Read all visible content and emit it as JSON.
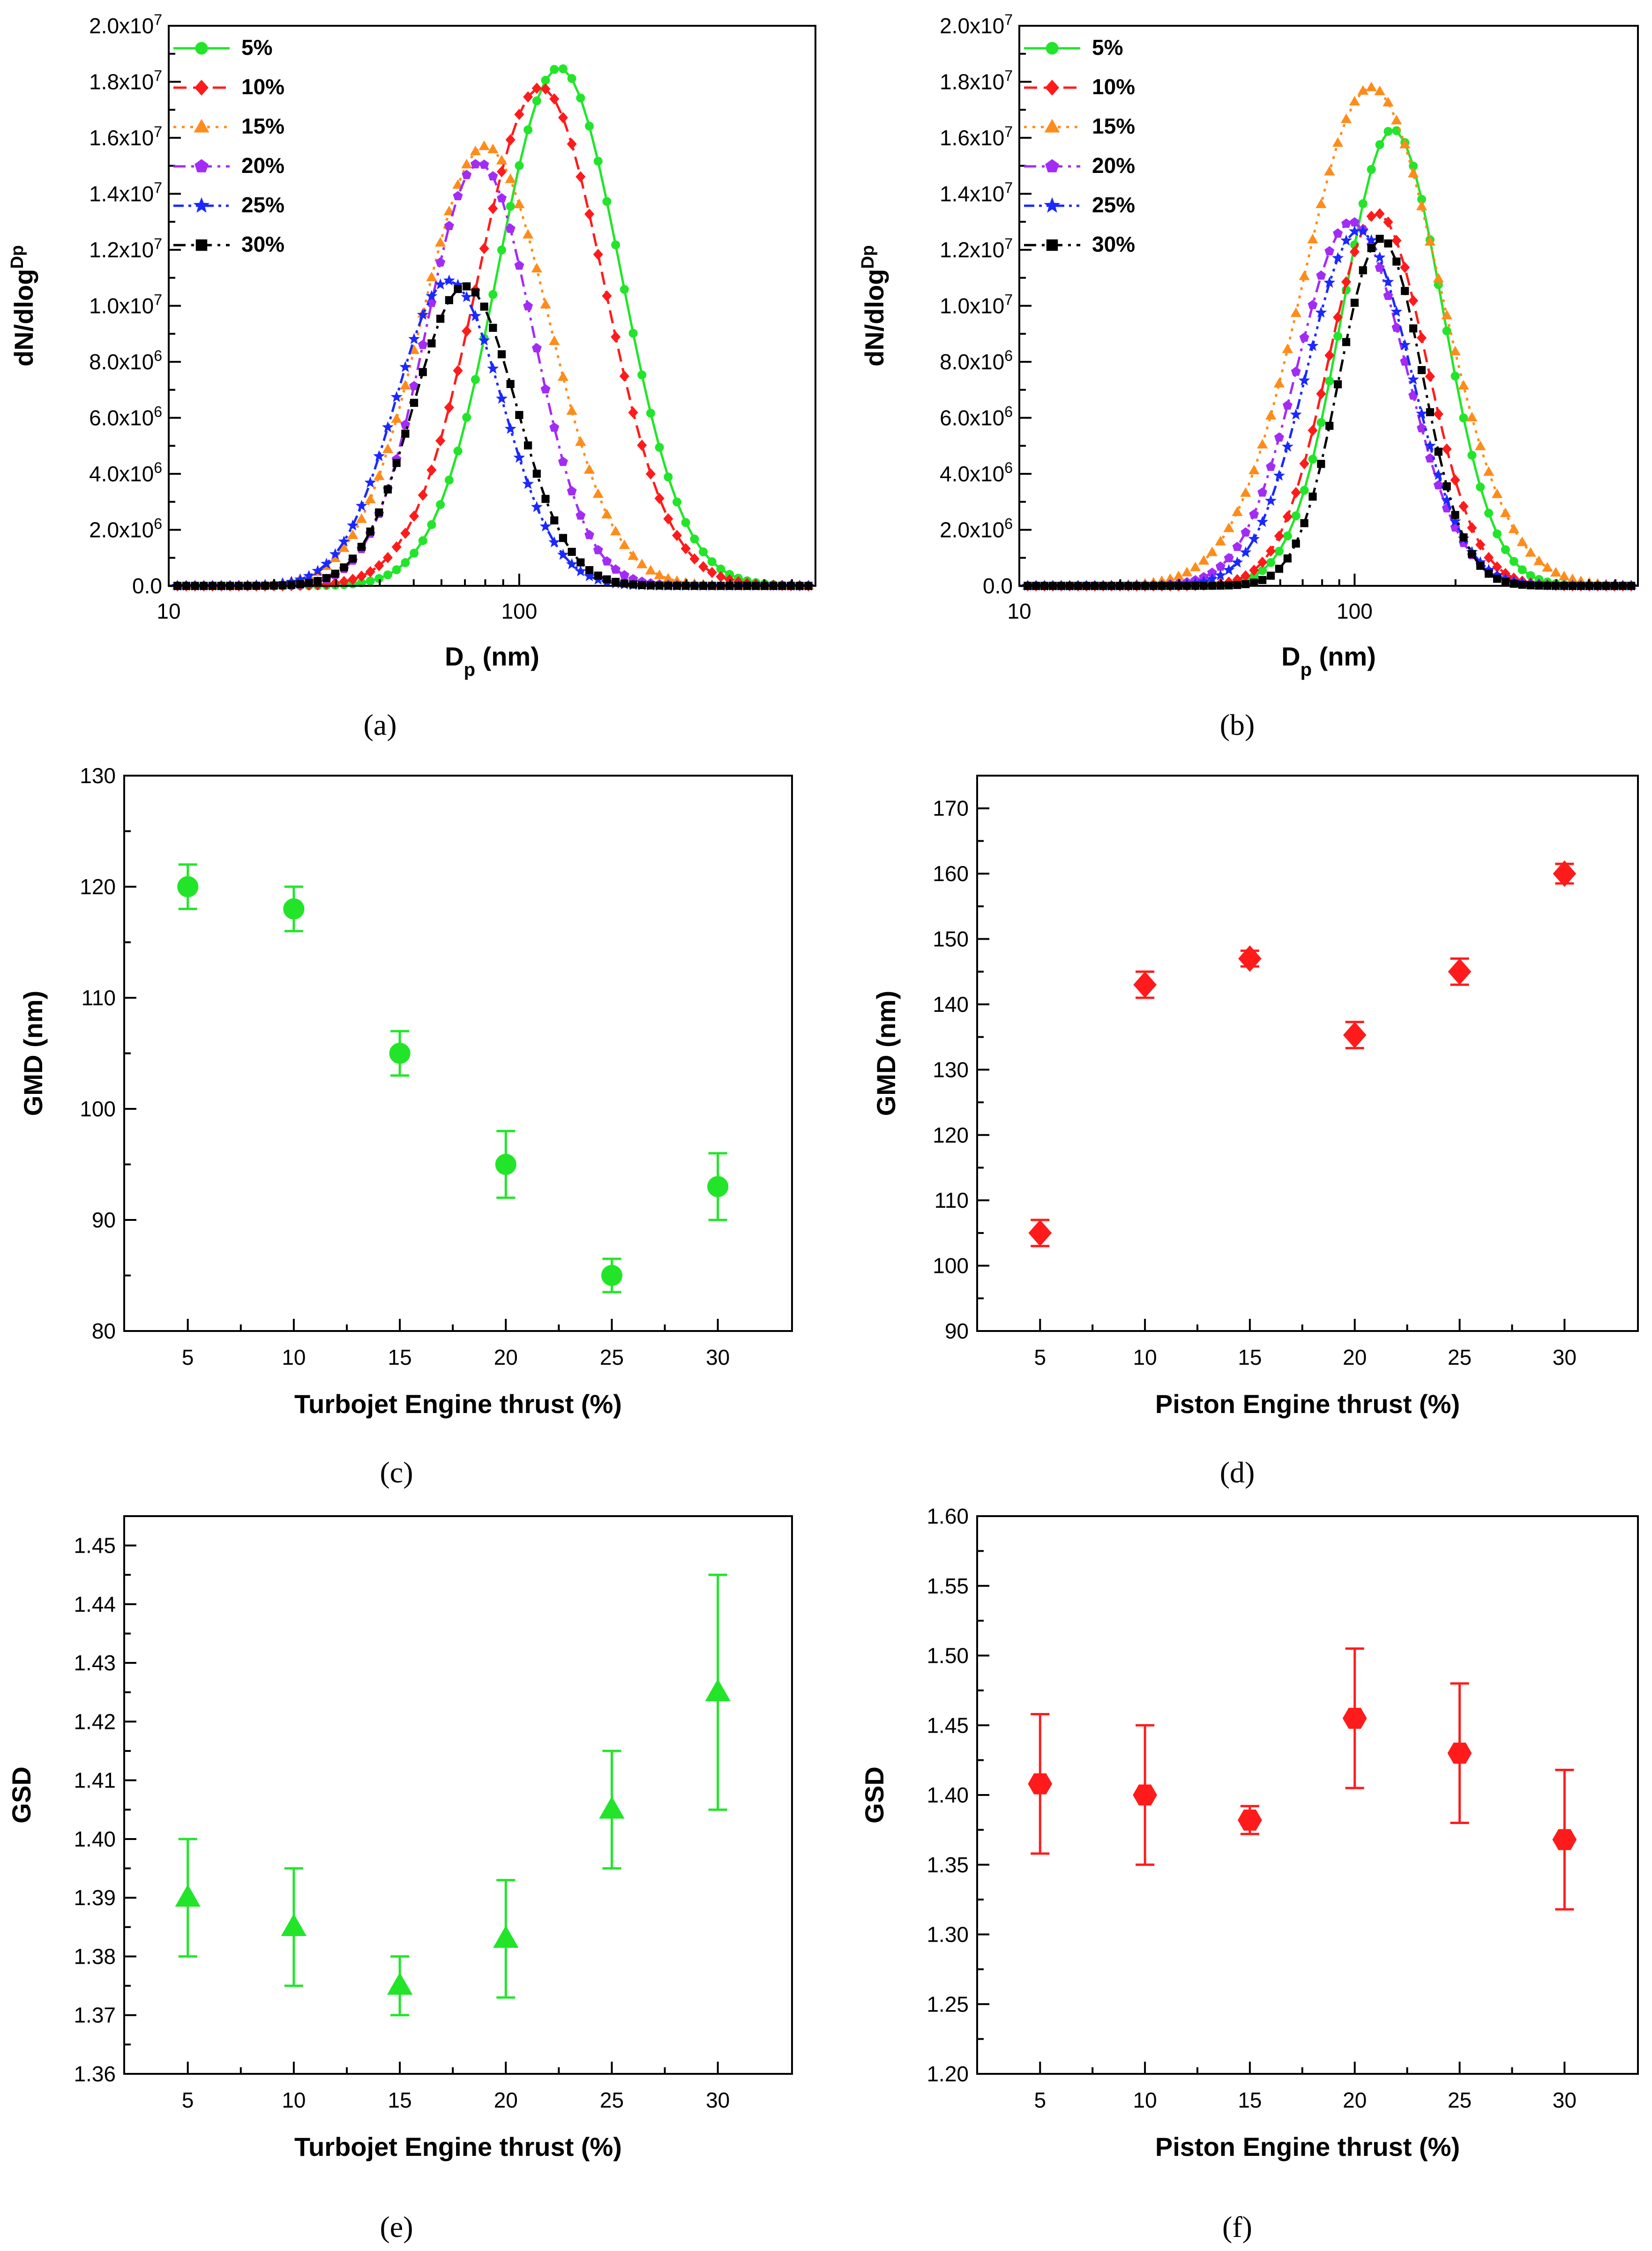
{
  "figure": {
    "colors": {
      "green": "#22e52a",
      "red": "#ff1b1b",
      "orange": "#ff8c1a",
      "purple": "#a32cf5",
      "blue": "#1b28ff",
      "black": "#000000"
    }
  },
  "chart_data": [
    {
      "id": "a",
      "panel_label": "(a)",
      "type": "line",
      "xlabel_main": "D",
      "xlabel_sub": "p",
      "xlabel_tail": " (nm)",
      "ylabel": "dN/dlog D p",
      "xscale": "log",
      "xlim": [
        10,
        700
      ],
      "ylim": [
        0,
        20000000
      ],
      "xticks": [
        {
          "v": 10,
          "label": "10"
        },
        {
          "v": 100,
          "label": "100"
        }
      ],
      "yticks": [
        {
          "v": 0,
          "label": "0.0"
        },
        {
          "v": 2000000,
          "label": "2.0x10^6"
        },
        {
          "v": 4000000,
          "label": "4.0x10^6"
        },
        {
          "v": 6000000,
          "label": "6.0x10^6"
        },
        {
          "v": 8000000,
          "label": "8.0x10^6"
        },
        {
          "v": 10000000,
          "label": "1.0x10^7"
        },
        {
          "v": 12000000,
          "label": "1.2x10^7"
        },
        {
          "v": 14000000,
          "label": "1.4x10^7"
        },
        {
          "v": 16000000,
          "label": "1.6x10^7"
        },
        {
          "v": 18000000,
          "label": "1.8x10^7"
        },
        {
          "v": 20000000,
          "label": "2.0x10^7"
        }
      ],
      "legend_position": "top-left",
      "series": [
        {
          "name": "5%",
          "color": "#22e52a",
          "marker": "circle",
          "dash": "solid",
          "peak_x": 130,
          "peak_y": 18500000,
          "gsd": 1.5
        },
        {
          "name": "10%",
          "color": "#ff1b1b",
          "marker": "diamond",
          "dash": "dash",
          "peak_x": 115,
          "peak_y": 17800000,
          "gsd": 1.52
        },
        {
          "name": "15%",
          "color": "#ff8c1a",
          "marker": "triangle",
          "dash": "dot",
          "peak_x": 80,
          "peak_y": 15700000,
          "gsd": 1.52
        },
        {
          "name": "20%",
          "color": "#a32cf5",
          "marker": "pentagon",
          "dash": "dashdot",
          "peak_x": 77,
          "peak_y": 15100000,
          "gsd": 1.42
        },
        {
          "name": "25%",
          "color": "#1b28ff",
          "marker": "star",
          "dash": "dashdotdot",
          "peak_x": 63,
          "peak_y": 10900000,
          "gsd": 1.42
        },
        {
          "name": "30%",
          "color": "#000000",
          "marker": "square",
          "dash": "dashdot",
          "peak_x": 70,
          "peak_y": 10700000,
          "gsd": 1.4
        }
      ]
    },
    {
      "id": "b",
      "panel_label": "(b)",
      "type": "line",
      "xlabel_main": "D",
      "xlabel_sub": "p",
      "xlabel_tail": " (nm)",
      "ylabel": "dN/dlog D p",
      "xscale": "log",
      "xlim": [
        10,
        700
      ],
      "ylim": [
        0,
        20000000
      ],
      "xticks": [
        {
          "v": 10,
          "label": "10"
        },
        {
          "v": 100,
          "label": "100"
        }
      ],
      "yticks": [
        {
          "v": 0,
          "label": "0.0"
        },
        {
          "v": 2000000,
          "label": "2.0x10^6"
        },
        {
          "v": 4000000,
          "label": "4.0x10^6"
        },
        {
          "v": 6000000,
          "label": "6.0x10^6"
        },
        {
          "v": 8000000,
          "label": "8.0x10^6"
        },
        {
          "v": 10000000,
          "label": "1.0x10^7"
        },
        {
          "v": 12000000,
          "label": "1.2x10^7"
        },
        {
          "v": 14000000,
          "label": "1.4x10^7"
        },
        {
          "v": 16000000,
          "label": "1.6x10^7"
        },
        {
          "v": 18000000,
          "label": "1.8x10^7"
        },
        {
          "v": 20000000,
          "label": "2.0x10^7"
        }
      ],
      "legend_position": "top-left",
      "series": [
        {
          "name": "5%",
          "color": "#22e52a",
          "marker": "circle",
          "dash": "solid",
          "peak_x": 130,
          "peak_y": 16300000,
          "gsd": 1.41
        },
        {
          "name": "10%",
          "color": "#ff1b1b",
          "marker": "diamond",
          "dash": "dash",
          "peak_x": 117,
          "peak_y": 13300000,
          "gsd": 1.4
        },
        {
          "name": "15%",
          "color": "#ff8c1a",
          "marker": "triangle",
          "dash": "dot",
          "peak_x": 112,
          "peak_y": 17800000,
          "gsd": 1.6
        },
        {
          "name": "20%",
          "color": "#a32cf5",
          "marker": "pentagon",
          "dash": "dashdot",
          "peak_x": 98,
          "peak_y": 13000000,
          "gsd": 1.45
        },
        {
          "name": "25%",
          "color": "#1b28ff",
          "marker": "star",
          "dash": "dashdotdot",
          "peak_x": 103,
          "peak_y": 12700000,
          "gsd": 1.43
        },
        {
          "name": "30%",
          "color": "#000000",
          "marker": "square",
          "dash": "dashdot",
          "peak_x": 120,
          "peak_y": 12400000,
          "gsd": 1.33
        }
      ]
    },
    {
      "id": "c",
      "panel_label": "(c)",
      "type": "scatter",
      "xlabel": "Turbojet Engine thrust (%)",
      "ylabel": "GMD (nm)",
      "xlim": [
        2,
        33.5
      ],
      "ylim": [
        80,
        130
      ],
      "xticks": [
        5,
        10,
        15,
        20,
        25,
        30
      ],
      "yticks": [
        80,
        90,
        100,
        110,
        120,
        130
      ],
      "series": [
        {
          "name": "GMD",
          "color": "#22e52a",
          "marker": "circle",
          "x": [
            5,
            10,
            15,
            20,
            25,
            30
          ],
          "y": [
            120,
            118,
            105,
            95,
            85,
            93
          ],
          "yerr": [
            2,
            2,
            2,
            3,
            1.5,
            3
          ]
        }
      ]
    },
    {
      "id": "d",
      "panel_label": "(d)",
      "type": "scatter",
      "xlabel": "Piston Engine thrust (%)",
      "ylabel": "GMD (nm)",
      "xlim": [
        2,
        33.5
      ],
      "ylim": [
        90,
        175
      ],
      "xticks": [
        5,
        10,
        15,
        20,
        25,
        30
      ],
      "yticks": [
        90,
        100,
        110,
        120,
        130,
        140,
        150,
        160,
        170
      ],
      "series": [
        {
          "name": "GMD",
          "color": "#ff1b1b",
          "marker": "diamond",
          "x": [
            5,
            10,
            15,
            20,
            25,
            30
          ],
          "y": [
            105,
            143,
            147,
            135.3,
            145,
            160
          ],
          "yerr": [
            2,
            2,
            1.2,
            2,
            2,
            1.5
          ]
        }
      ]
    },
    {
      "id": "e",
      "panel_label": "(e)",
      "type": "scatter",
      "xlabel": "Turbojet Engine thrust (%)",
      "ylabel": "GSD",
      "xlim": [
        2,
        33.5
      ],
      "ylim": [
        1.36,
        1.455
      ],
      "xticks": [
        5,
        10,
        15,
        20,
        25,
        30
      ],
      "yticks": [
        1.36,
        1.37,
        1.38,
        1.39,
        1.4,
        1.41,
        1.42,
        1.43,
        1.44,
        1.45
      ],
      "ytick_decimals": 2,
      "series": [
        {
          "name": "GSD",
          "color": "#22e52a",
          "marker": "triangle",
          "x": [
            5,
            10,
            15,
            20,
            25,
            30
          ],
          "y": [
            1.39,
            1.385,
            1.375,
            1.383,
            1.405,
            1.425
          ],
          "yerr": [
            0.01,
            0.01,
            0.005,
            0.01,
            0.01,
            0.02
          ]
        }
      ]
    },
    {
      "id": "f",
      "panel_label": "(f)",
      "type": "scatter",
      "xlabel": "Piston Engine thrust (%)",
      "ylabel": "GSD",
      "xlim": [
        2,
        33.5
      ],
      "ylim": [
        1.2,
        1.6
      ],
      "xticks": [
        5,
        10,
        15,
        20,
        25,
        30
      ],
      "yticks": [
        1.2,
        1.25,
        1.3,
        1.35,
        1.4,
        1.45,
        1.5,
        1.55,
        1.6
      ],
      "ytick_decimals": 2,
      "series": [
        {
          "name": "GSD",
          "color": "#ff1b1b",
          "marker": "hexagon",
          "x": [
            5,
            10,
            15,
            20,
            25,
            30
          ],
          "y": [
            1.408,
            1.4,
            1.382,
            1.455,
            1.43,
            1.368
          ],
          "yerr": [
            0.05,
            0.05,
            0.01,
            0.05,
            0.05,
            0.05
          ]
        }
      ]
    }
  ]
}
